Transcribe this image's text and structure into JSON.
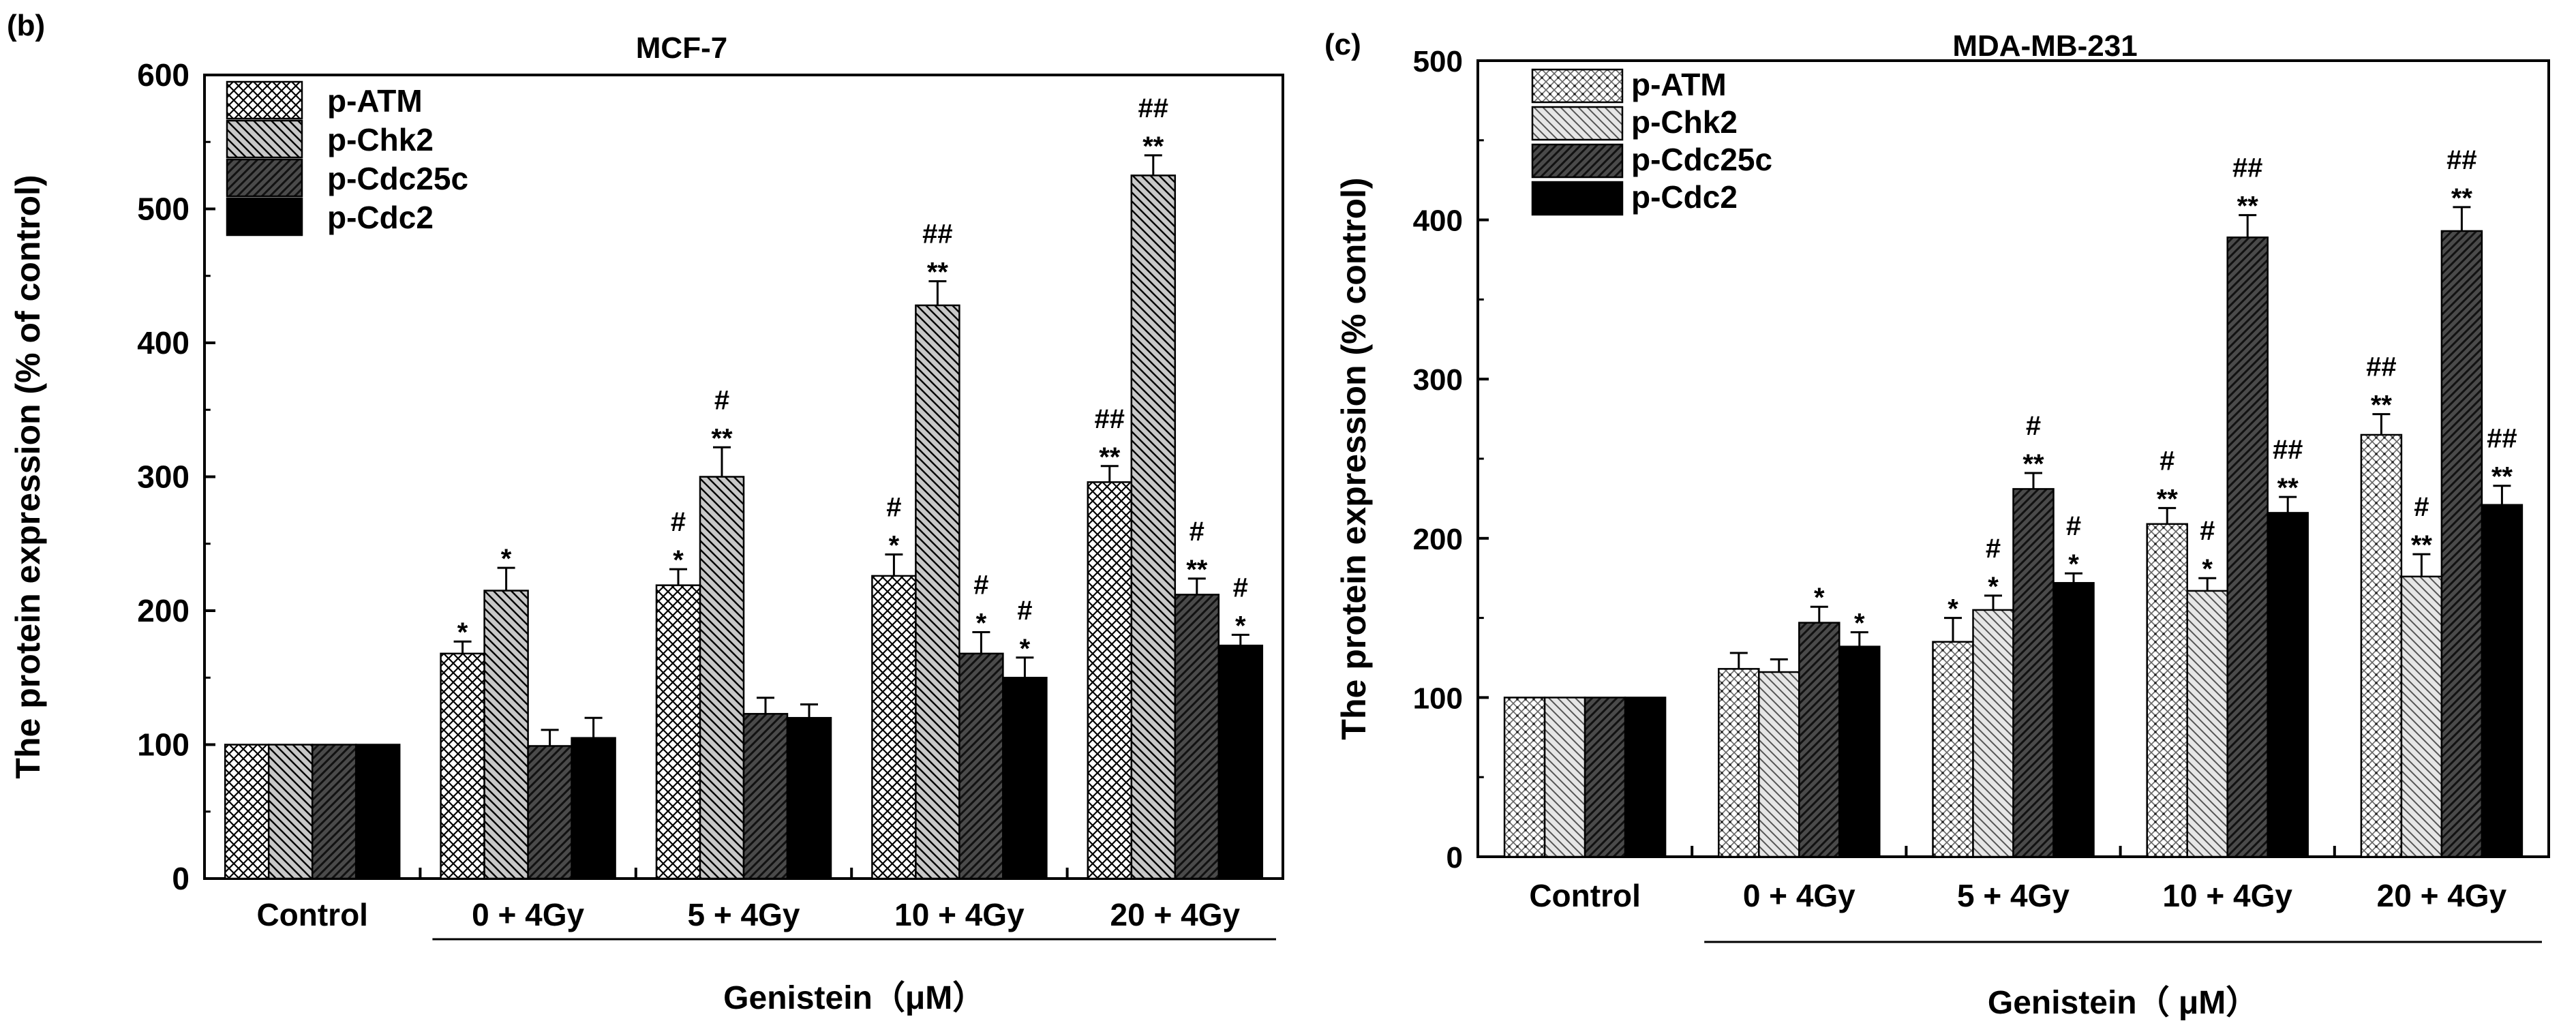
{
  "chart_data": [
    {
      "panel_label": "(b)",
      "type": "bar",
      "title": "MCF-7",
      "ylabel": "The protein expression (% of control)",
      "xlabel": "Genistein（μM）",
      "ylim": [
        0,
        600
      ],
      "yticks": [
        0,
        100,
        200,
        300,
        400,
        500,
        600
      ],
      "categories": [
        "Control",
        "0 + 4Gy",
        "5 + 4Gy",
        "10 + 4Gy",
        "20 + 4Gy"
      ],
      "bracket_from_category": 1,
      "legend_position": "top-left",
      "series": [
        {
          "name": "p-ATM",
          "pattern": "crosshatch",
          "values": [
            100,
            168,
            219,
            226,
            296
          ],
          "errors": [
            0,
            9,
            12,
            16,
            12
          ],
          "marks": [
            "",
            "*",
            "#|*",
            "#|*",
            "##|**"
          ]
        },
        {
          "name": "p-Chk2",
          "pattern": "backslash",
          "values": [
            100,
            215,
            300,
            428,
            525
          ],
          "errors": [
            0,
            17,
            22,
            18,
            15
          ],
          "marks": [
            "",
            "*",
            "#|**",
            "##|**",
            "##|**"
          ]
        },
        {
          "name": "p-Cdc25c",
          "pattern": "slash",
          "values": [
            100,
            99,
            123,
            168,
            212
          ],
          "errors": [
            0,
            12,
            12,
            16,
            12
          ],
          "marks": [
            "",
            "",
            "",
            "#|*",
            "#|**"
          ]
        },
        {
          "name": "p-Cdc2",
          "pattern": "solid",
          "values": [
            100,
            105,
            120,
            150,
            174
          ],
          "errors": [
            0,
            15,
            10,
            15,
            8
          ],
          "marks": [
            "",
            "",
            "",
            "#|*",
            "#|*"
          ]
        }
      ]
    },
    {
      "panel_label": "(c)",
      "type": "bar",
      "title": "MDA-MB-231",
      "ylabel": "The protein expression (% control)",
      "xlabel": "Genistein（ μM）",
      "ylim": [
        0,
        500
      ],
      "yticks": [
        0,
        100,
        200,
        300,
        400,
        500
      ],
      "categories": [
        "Control",
        "0 + 4Gy",
        "5 + 4Gy",
        "10 + 4Gy",
        "20 + 4Gy"
      ],
      "bracket_from_category": 1,
      "legend_position": "top-left",
      "series": [
        {
          "name": "p-ATM",
          "pattern": "dots",
          "values": [
            100,
            118,
            135,
            209,
            265
          ],
          "errors": [
            0,
            10,
            15,
            10,
            13
          ],
          "marks": [
            "",
            "",
            "*",
            "#|**",
            "##|**"
          ]
        },
        {
          "name": "p-Chk2",
          "pattern": "backslash-light",
          "values": [
            100,
            116,
            155,
            167,
            176
          ],
          "errors": [
            0,
            8,
            9,
            8,
            14
          ],
          "marks": [
            "",
            "",
            "#|*",
            "#|*",
            "#|**"
          ]
        },
        {
          "name": "p-Cdc25c",
          "pattern": "slash",
          "values": [
            100,
            147,
            231,
            389,
            393
          ],
          "errors": [
            0,
            10,
            10,
            14,
            15
          ],
          "marks": [
            "",
            "*",
            "#|**",
            "##|**",
            "##|**"
          ]
        },
        {
          "name": "p-Cdc2",
          "pattern": "solid",
          "values": [
            100,
            132,
            172,
            216,
            221
          ],
          "errors": [
            0,
            9,
            6,
            10,
            12
          ],
          "marks": [
            "",
            "*",
            "#|*",
            "##|**",
            "##|**"
          ]
        }
      ]
    }
  ]
}
